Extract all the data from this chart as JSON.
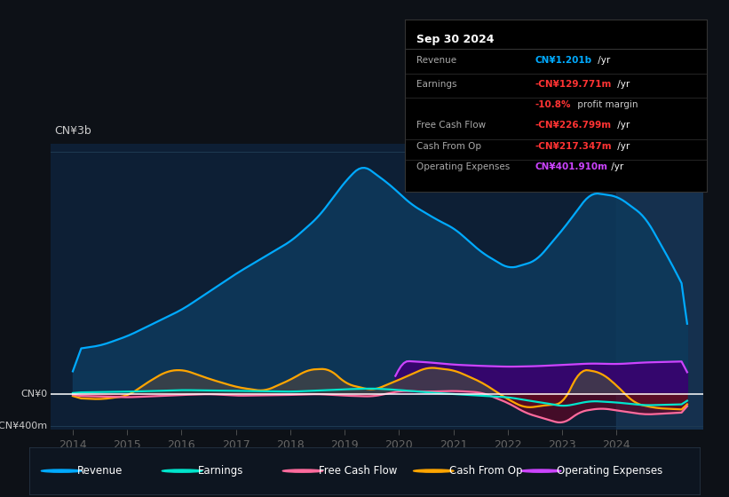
{
  "bg_color": "#0d1117",
  "plot_bg_color": "#0d1f35",
  "grid_color": "#1e3a52",
  "zero_line_color": "#ffffff",
  "ylabel_top": "CN¥3b",
  "ylabel_bottom": "-CN¥400m",
  "x_ticks": [
    2014,
    2015,
    2016,
    2017,
    2018,
    2019,
    2020,
    2021,
    2022,
    2023,
    2024
  ],
  "ylim": [
    -450000000,
    3100000000
  ],
  "revenue_color": "#00aaff",
  "revenue_fill": "#0d3a5c",
  "earnings_color": "#00e5cc",
  "fcf_color": "#ff6b9d",
  "cashfromop_color": "#ffa500",
  "cashfromop_fill": "#555555",
  "opex_color": "#cc44ff",
  "opex_fill": "#3a0070",
  "tooltip_bg": "#000000",
  "tooltip_title": "Sep 30 2024",
  "highlight_x_start": 2024.0,
  "shade_color": "#1a3a5c",
  "legend_items": [
    {
      "label": "Revenue",
      "color": "#00aaff"
    },
    {
      "label": "Earnings",
      "color": "#00e5cc"
    },
    {
      "label": "Free Cash Flow",
      "color": "#ff6b9d"
    },
    {
      "label": "Cash From Op",
      "color": "#ffa500"
    },
    {
      "label": "Operating Expenses",
      "color": "#cc44ff"
    }
  ]
}
